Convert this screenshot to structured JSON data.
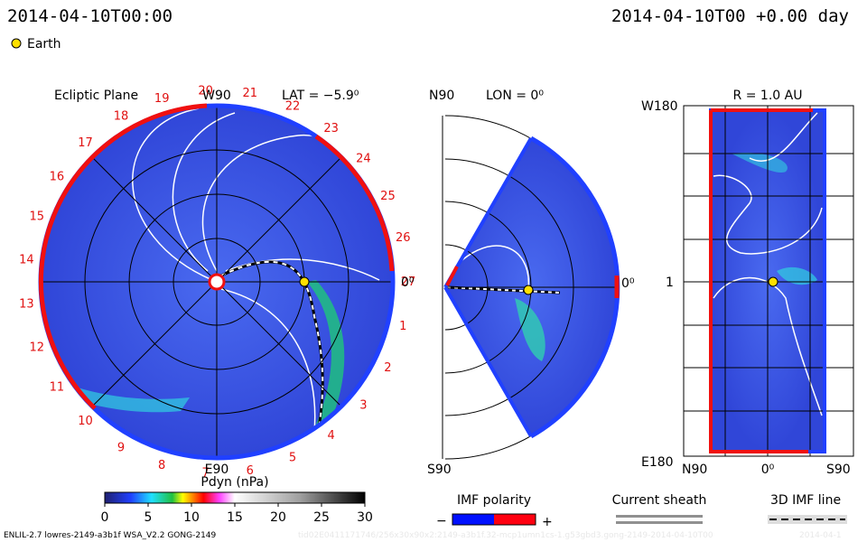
{
  "header": {
    "left": "2014-04-10T00:00",
    "right": "2014-04-10T00 +0.00 day",
    "legend": "Earth"
  },
  "ecliptic": {
    "title": "Ecliptic Plane",
    "top": "W90",
    "lat": "LAT = −5.9⁰",
    "bottom": "E90",
    "right": "0⁰",
    "carrington": [
      1,
      2,
      3,
      4,
      5,
      6,
      7,
      8,
      9,
      10,
      11,
      12,
      13,
      14,
      15,
      16,
      17,
      18,
      19,
      20,
      21,
      22,
      23,
      24,
      25,
      26,
      27
    ]
  },
  "meridional": {
    "top": "N90",
    "lon": "LON = 0⁰",
    "bottom": "S90",
    "right": "0⁰"
  },
  "radial": {
    "title": "R = 1.0 AU",
    "top_left": "W180",
    "mid_left": "1",
    "bottom_left": "E180",
    "bottom_1": "N90",
    "bottom_2": "0⁰",
    "bottom_3": "S90"
  },
  "colorbar": {
    "title": "Pdyn (nPa)",
    "ticks": [
      0,
      5,
      10,
      15,
      20,
      25,
      30
    ]
  },
  "legends": {
    "imf": "IMF polarity",
    "minus": "−",
    "plus": "+",
    "sheath": "Current sheath",
    "line": "3D IMF line"
  },
  "footer": {
    "left": "ENLIL-2.7 lowres-2149-a3b1f WSA_V2.2 GONG-2149",
    "middle": "tid02E0411171746/256x30x90x2:2149-a3b1f.32-mcp1umn1cs-1.g53gbd3.gong-2149-2014-04-10T00",
    "right": "2014-04-1"
  }
}
